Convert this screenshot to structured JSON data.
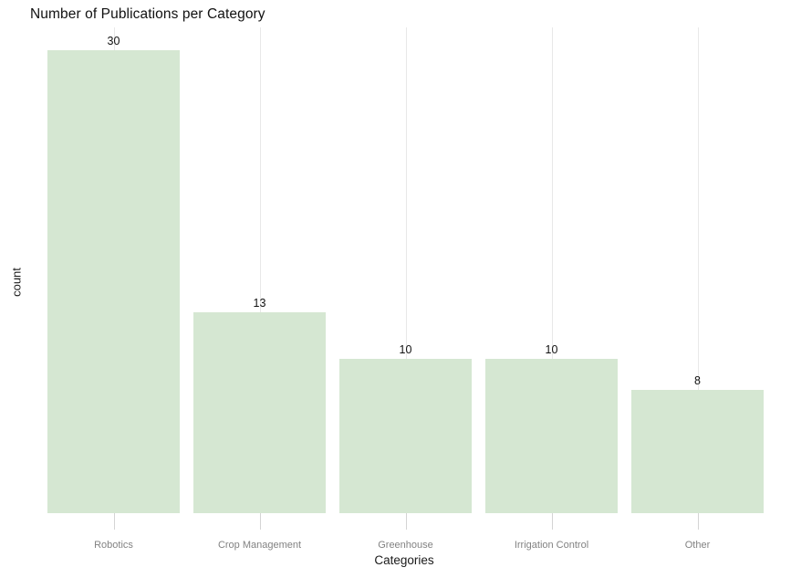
{
  "chart_data": {
    "type": "bar",
    "title": "Number of Publications per Category",
    "xlabel": "Categories",
    "ylabel": "count",
    "categories": [
      "Robotics",
      "Crop Management",
      "Greenhouse",
      "Irrigation Control",
      "Other"
    ],
    "values": [
      30,
      13,
      10,
      10,
      8
    ],
    "bar_labels": [
      "30",
      "13",
      "10",
      "10",
      "8"
    ],
    "ylim": [
      0,
      31.5
    ],
    "legend": "none",
    "grid": "vertical-gridline-per-category",
    "colors": {
      "bar_fill": "#d5e7d2",
      "gridline": "#e8e8e8",
      "tick": "#d4d4d4",
      "value_label_text": "#111111",
      "category_label_text": "#828282",
      "axis_title_text": "#1a1a1a",
      "title_text": "#111111",
      "background": "#ffffff"
    }
  }
}
